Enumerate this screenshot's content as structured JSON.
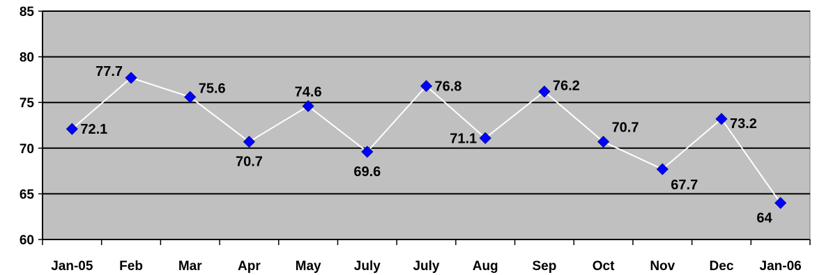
{
  "chart_data": {
    "type": "line",
    "title": "",
    "xlabel": "",
    "ylabel": "",
    "categories": [
      "Jan-05",
      "Feb",
      "Mar",
      "Apr",
      "May",
      "July",
      "July",
      "Aug",
      "Sep",
      "Oct",
      "Nov",
      "Dec",
      "Jan-06"
    ],
    "values": [
      72.1,
      77.7,
      75.6,
      70.7,
      74.6,
      69.6,
      76.8,
      71.1,
      76.2,
      70.7,
      67.7,
      73.2,
      64
    ],
    "value_labels": [
      "72.1",
      "77.7",
      "75.6",
      "70.7",
      "74.6",
      "69.6",
      "76.8",
      "71.1",
      "76.2",
      "70.7",
      "67.7",
      "73.2",
      "64"
    ],
    "ylim": [
      60,
      85
    ],
    "yticks": [
      60,
      65,
      70,
      75,
      80,
      85
    ],
    "grid": true,
    "legend": "none",
    "colors": {
      "plot_background": "#c0c0c0",
      "gridline": "#000000",
      "line": "#ffffff",
      "marker": "#0000ff"
    }
  }
}
